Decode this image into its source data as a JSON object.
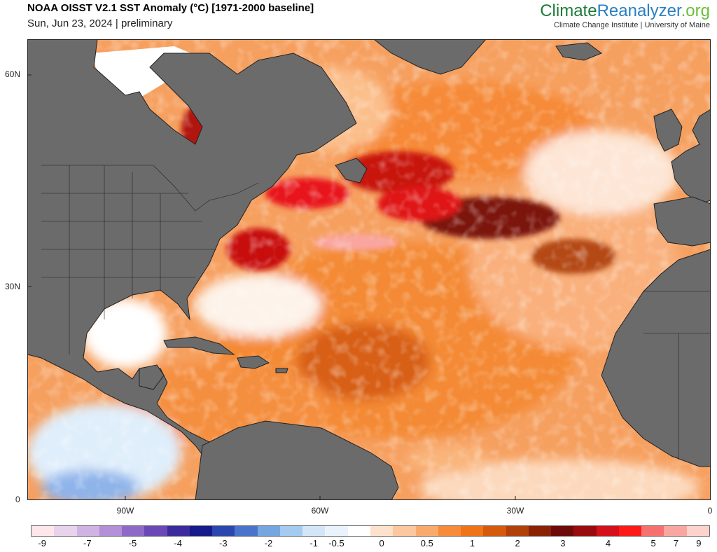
{
  "header": {
    "title": "NOAA OISST V2.1 SST Anomaly (°C) [1971-2000 baseline]",
    "subtitle": "Sun, Jun 23, 2024 | preliminary",
    "brand_part1": "Climate",
    "brand_part2": "Reanalyzer",
    "brand_part3": ".org",
    "brand_sub": "Climate Change Institute | University of Maine"
  },
  "map": {
    "lat_labels": [
      "60N",
      "30N",
      "0"
    ],
    "lon_labels": [
      "90W",
      "60W",
      "30W",
      "0"
    ],
    "land_color": "#6b6b6b",
    "ice_color": "#ffffff"
  },
  "colorbar": {
    "colors": [
      "#fde7ea",
      "#e8d3ec",
      "#cfb3e2",
      "#b28fd6",
      "#8e6ac8",
      "#6a48b6",
      "#3c2b9c",
      "#161a8a",
      "#2c46b0",
      "#4a74cc",
      "#74a6e0",
      "#a4caf0",
      "#d3e6f8",
      "#eaf3fc",
      "#ffffff",
      "#fde1cc",
      "#fcc79c",
      "#f9aa6a",
      "#f78b3a",
      "#f07318",
      "#d55a0c",
      "#b1410a",
      "#8a2306",
      "#6e0a0a",
      "#9a0b10",
      "#d4101a",
      "#ff1a1a",
      "#f77070",
      "#f9a6a0",
      "#fcd2cd"
    ],
    "labels": [
      "-9",
      "-7",
      "-5",
      "-4",
      "-3",
      "-2",
      "-1",
      "-0.5",
      "0",
      "0.5",
      "1",
      "2",
      "3",
      "4",
      "5",
      "7",
      "9"
    ]
  }
}
